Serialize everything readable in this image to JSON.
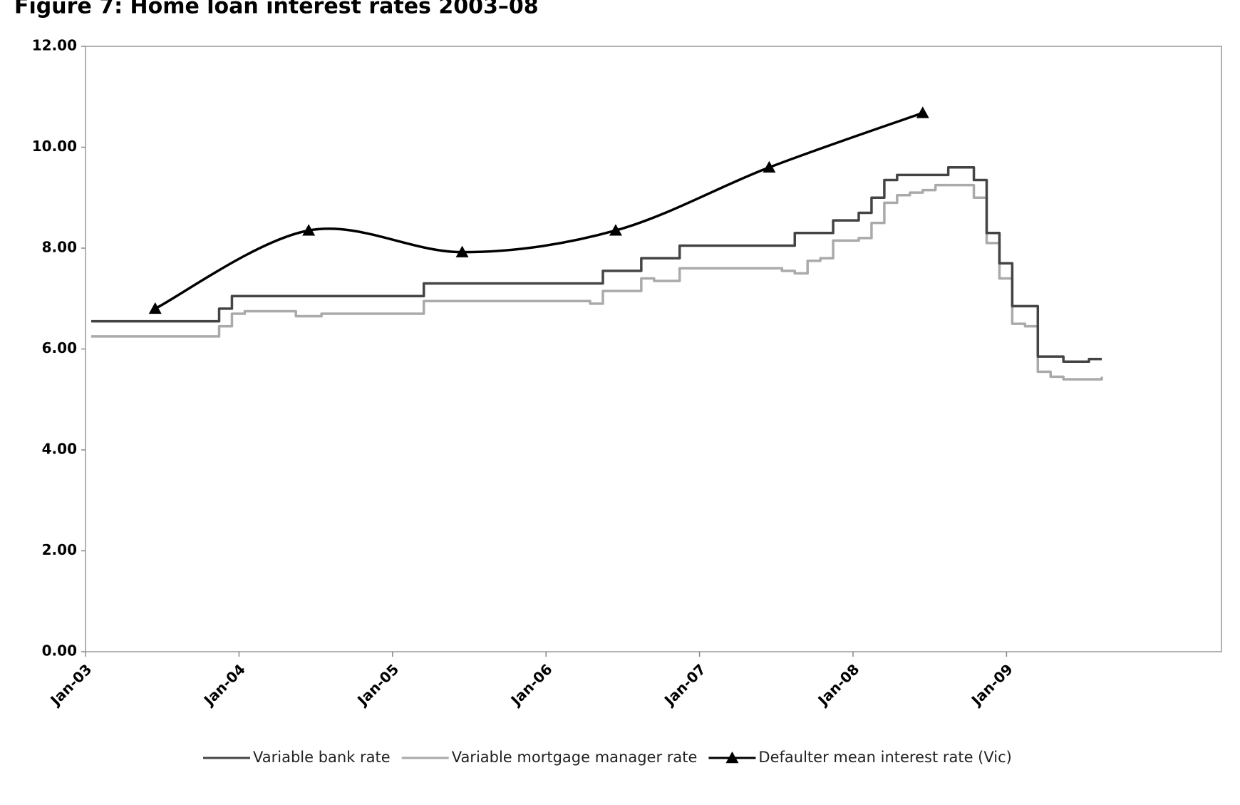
{
  "chart_data": {
    "type": "line",
    "title": "Figure 7: Home loan interest rates 2003–08",
    "x": [
      "Jan-03",
      "Feb-03",
      "Mar-03",
      "Apr-03",
      "May-03",
      "Jun-03",
      "Jul-03",
      "Aug-03",
      "Sep-03",
      "Oct-03",
      "Nov-03",
      "Dec-03",
      "Jan-04",
      "Feb-04",
      "Mar-04",
      "Apr-04",
      "May-04",
      "Jun-04",
      "Jul-04",
      "Aug-04",
      "Sep-04",
      "Oct-04",
      "Nov-04",
      "Dec-04",
      "Jan-05",
      "Feb-05",
      "Mar-05",
      "Apr-05",
      "May-05",
      "Jun-05",
      "Jul-05",
      "Aug-05",
      "Sep-05",
      "Oct-05",
      "Nov-05",
      "Dec-05",
      "Jan-06",
      "Feb-06",
      "Mar-06",
      "Apr-06",
      "May-06",
      "Jun-06",
      "Jul-06",
      "Aug-06",
      "Sep-06",
      "Oct-06",
      "Nov-06",
      "Dec-06",
      "Jan-07",
      "Feb-07",
      "Mar-07",
      "Apr-07",
      "May-07",
      "Jun-07",
      "Jul-07",
      "Aug-07",
      "Sep-07",
      "Oct-07",
      "Nov-07",
      "Dec-07",
      "Jan-08",
      "Feb-08",
      "Mar-08",
      "Apr-08",
      "May-08",
      "Jun-08",
      "Jul-08",
      "Aug-08",
      "Sep-08",
      "Oct-08",
      "Nov-08",
      "Dec-08",
      "Jan-09",
      "Feb-09",
      "Mar-09",
      "Apr-09",
      "May-09",
      "Jun-09",
      "Jul-09",
      "Aug-09"
    ],
    "series": [
      {
        "name": "Variable bank rate",
        "color": "#444444",
        "values": [
          6.55,
          6.55,
          6.55,
          6.55,
          6.55,
          6.55,
          6.55,
          6.55,
          6.55,
          6.55,
          6.8,
          7.05,
          7.05,
          7.05,
          7.05,
          7.05,
          7.05,
          7.05,
          7.05,
          7.05,
          7.05,
          7.05,
          7.05,
          7.05,
          7.05,
          7.05,
          7.3,
          7.3,
          7.3,
          7.3,
          7.3,
          7.3,
          7.3,
          7.3,
          7.3,
          7.3,
          7.3,
          7.3,
          7.3,
          7.3,
          7.55,
          7.55,
          7.55,
          7.8,
          7.8,
          7.8,
          8.05,
          8.05,
          8.05,
          8.05,
          8.05,
          8.05,
          8.05,
          8.05,
          8.05,
          8.3,
          8.3,
          8.3,
          8.55,
          8.55,
          8.7,
          9.0,
          9.35,
          9.45,
          9.45,
          9.45,
          9.45,
          9.6,
          9.6,
          9.35,
          8.3,
          7.7,
          6.85,
          6.85,
          5.85,
          5.85,
          5.75,
          5.75,
          5.8,
          5.8
        ]
      },
      {
        "name": "Variable mortgage manager rate",
        "color": "#aaaaaa",
        "values": [
          6.25,
          6.25,
          6.25,
          6.25,
          6.25,
          6.25,
          6.25,
          6.25,
          6.25,
          6.25,
          6.45,
          6.7,
          6.75,
          6.75,
          6.75,
          6.75,
          6.65,
          6.65,
          6.7,
          6.7,
          6.7,
          6.7,
          6.7,
          6.7,
          6.7,
          6.7,
          6.95,
          6.95,
          6.95,
          6.95,
          6.95,
          6.95,
          6.95,
          6.95,
          6.95,
          6.95,
          6.95,
          6.95,
          6.95,
          6.9,
          7.15,
          7.15,
          7.15,
          7.4,
          7.35,
          7.35,
          7.6,
          7.6,
          7.6,
          7.6,
          7.6,
          7.6,
          7.6,
          7.6,
          7.55,
          7.5,
          7.75,
          7.8,
          8.15,
          8.15,
          8.2,
          8.5,
          8.9,
          9.05,
          9.1,
          9.15,
          9.25,
          9.25,
          9.25,
          9.0,
          8.1,
          7.4,
          6.5,
          6.45,
          5.55,
          5.45,
          5.4,
          5.4,
          5.4,
          5.45
        ]
      },
      {
        "name": "Defaulter mean interest rate (Vic)",
        "color": "#000000",
        "marker": "triangle",
        "smooth": true,
        "x": [
          "Jun-03",
          "Jun-04",
          "Jun-05",
          "Jun-06",
          "Jun-07",
          "Jun-08"
        ],
        "values": [
          6.8,
          8.35,
          7.92,
          8.35,
          9.6,
          10.68
        ]
      }
    ],
    "xticks": [
      "Jan-03",
      "Jan-04",
      "Jan-05",
      "Jan-06",
      "Jan-07",
      "Jan-08",
      "Jan-09"
    ],
    "ylim": [
      0,
      12
    ],
    "yticks": [
      {
        "value": 0,
        "label": "0.00"
      },
      {
        "value": 2,
        "label": "2.00"
      },
      {
        "value": 4,
        "label": "4.00"
      },
      {
        "value": 6,
        "label": "6.00"
      },
      {
        "value": 8,
        "label": "8.00"
      },
      {
        "value": 10,
        "label": "10.00"
      },
      {
        "value": 12,
        "label": "12.00"
      }
    ],
    "legend": "bottom"
  }
}
